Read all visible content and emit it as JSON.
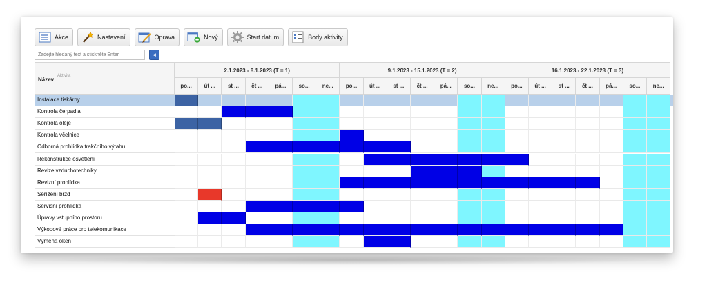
{
  "toolbar": {
    "buttons": [
      {
        "label": "Akce",
        "icon": "list-icon"
      },
      {
        "label": "Nastavení",
        "icon": "magic-wand-icon"
      },
      {
        "label": "Oprava",
        "icon": "edit-icon"
      },
      {
        "label": "Nový",
        "icon": "new-window-icon"
      },
      {
        "label": "Start datum",
        "icon": "gear-icon"
      },
      {
        "label": "Body aktivity",
        "icon": "checklist-icon"
      }
    ]
  },
  "search": {
    "placeholder": "Zadejte hledaný text a stiskněte Enter",
    "button_icon": "arrow-left-icon"
  },
  "grid": {
    "name_header": "Název",
    "activity_header": "Aktivita",
    "weeks": [
      "2.1.2023 - 8.1.2023 (T = 1)",
      "9.1.2023 - 15.1.2023 (T = 2)",
      "16.1.2023 - 22.1.2023 (T = 3)"
    ],
    "days": [
      "po...",
      "út ...",
      "st ...",
      "čt ...",
      "pá...",
      "so...",
      "ne..."
    ],
    "colors": {
      "selected_row": "#b8d0ea",
      "selected_bar": "#3c63a4",
      "bar": "#0000e6",
      "weekend": "#7ff6ff",
      "alert": "#e8382a",
      "empty": "#ffffff"
    },
    "rows": [
      {
        "name": "Instalace tiskárny",
        "selected": true,
        "cells": [
          1,
          0,
          0,
          0,
          0,
          0,
          0,
          0,
          0,
          0,
          0,
          0,
          0,
          0,
          0,
          0,
          0,
          0,
          0,
          0,
          0
        ]
      },
      {
        "name": "Kontrola čerpadla",
        "cells": [
          0,
          0,
          1,
          1,
          1,
          0,
          0,
          0,
          0,
          0,
          0,
          0,
          0,
          0,
          0,
          0,
          0,
          0,
          0,
          0,
          0
        ]
      },
      {
        "name": "Kontrola oleje",
        "cells": [
          2,
          2,
          0,
          0,
          0,
          0,
          0,
          0,
          0,
          0,
          0,
          0,
          0,
          0,
          0,
          0,
          0,
          0,
          0,
          0,
          0
        ]
      },
      {
        "name": "Kontrola včelnice",
        "cells": [
          0,
          0,
          0,
          0,
          0,
          0,
          0,
          1,
          0,
          0,
          0,
          0,
          0,
          0,
          0,
          0,
          0,
          0,
          0,
          0,
          0
        ]
      },
      {
        "name": "Odborná prohlídka trakčního výtahu",
        "cells": [
          0,
          0,
          0,
          1,
          1,
          1,
          1,
          1,
          1,
          1,
          0,
          0,
          0,
          0,
          0,
          0,
          0,
          0,
          0,
          0,
          0
        ]
      },
      {
        "name": "Rekonstrukce osvětlení",
        "cells": [
          0,
          0,
          0,
          0,
          0,
          0,
          0,
          0,
          1,
          1,
          1,
          1,
          1,
          1,
          1,
          0,
          0,
          0,
          0,
          0,
          0
        ]
      },
      {
        "name": "Revize vzduchotechniky",
        "cells": [
          0,
          0,
          0,
          0,
          0,
          0,
          0,
          0,
          0,
          0,
          1,
          1,
          1,
          0,
          0,
          0,
          0,
          0,
          0,
          0,
          0
        ]
      },
      {
        "name": "Revizní prohlídka",
        "cells": [
          0,
          0,
          0,
          0,
          0,
          0,
          0,
          1,
          1,
          1,
          1,
          1,
          1,
          1,
          1,
          1,
          1,
          1,
          0,
          0,
          0
        ]
      },
      {
        "name": "Seřízení brzd",
        "cells": [
          0,
          3,
          0,
          0,
          0,
          0,
          0,
          0,
          0,
          0,
          0,
          0,
          0,
          0,
          0,
          0,
          0,
          0,
          0,
          0,
          0
        ]
      },
      {
        "name": "Servisní prohlídka",
        "cells": [
          0,
          0,
          0,
          1,
          1,
          1,
          1,
          1,
          0,
          0,
          0,
          0,
          0,
          0,
          0,
          0,
          0,
          0,
          0,
          0,
          0
        ]
      },
      {
        "name": "Úpravy vstupního prostoru",
        "cells": [
          0,
          1,
          1,
          0,
          0,
          0,
          0,
          0,
          0,
          0,
          0,
          0,
          0,
          0,
          0,
          0,
          0,
          0,
          0,
          0,
          0
        ]
      },
      {
        "name": "Výkopové práce pro telekomunikace",
        "cells": [
          0,
          0,
          0,
          1,
          1,
          1,
          1,
          1,
          1,
          1,
          1,
          1,
          1,
          1,
          1,
          1,
          1,
          1,
          1,
          0,
          0
        ]
      },
      {
        "name": "Výměna oken",
        "cells": [
          0,
          0,
          0,
          0,
          0,
          0,
          0,
          0,
          1,
          1,
          0,
          0,
          0,
          0,
          0,
          0,
          0,
          0,
          0,
          0,
          0
        ]
      }
    ]
  }
}
